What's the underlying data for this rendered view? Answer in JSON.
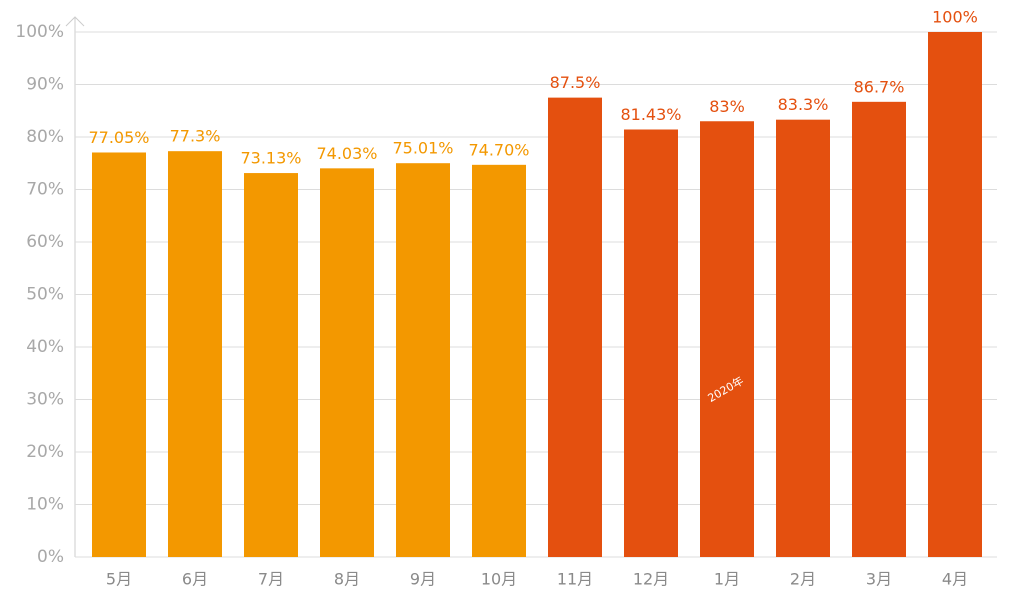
{
  "chart_data": {
    "type": "bar",
    "categories": [
      "5月",
      "6月",
      "7月",
      "8月",
      "9月",
      "10月",
      "11月",
      "12月",
      "1月",
      "2月",
      "3月",
      "4月"
    ],
    "values": [
      77.05,
      77.3,
      73.13,
      74.03,
      75.01,
      74.7,
      87.5,
      81.43,
      83,
      83.3,
      86.7,
      100
    ],
    "value_labels": [
      "77.05%",
      "77.3%",
      "73.13%",
      "74.03%",
      "75.01%",
      "74.70%",
      "87.5%",
      "81.43%",
      "83%",
      "83.3%",
      "86.7%",
      "100%"
    ],
    "colors": [
      "#f39800",
      "#f39800",
      "#f39800",
      "#f39800",
      "#f39800",
      "#f39800",
      "#e4500f",
      "#e4500f",
      "#e4500f",
      "#e4500f",
      "#e4500f",
      "#e4500f"
    ],
    "ylim": [
      0,
      100
    ],
    "yticks": [
      {
        "value": 0,
        "label": "0%"
      },
      {
        "value": 10,
        "label": "10%"
      },
      {
        "value": 20,
        "label": "20%"
      },
      {
        "value": 30,
        "label": "30%"
      },
      {
        "value": 40,
        "label": "40%"
      },
      {
        "value": 50,
        "label": "50%"
      },
      {
        "value": 60,
        "label": "60%"
      },
      {
        "value": 70,
        "label": "70%"
      },
      {
        "value": 80,
        "label": "80%"
      },
      {
        "value": 90,
        "label": "90%"
      },
      {
        "value": 100,
        "label": "100%"
      }
    ],
    "grid": true,
    "annotation": "2020年"
  }
}
